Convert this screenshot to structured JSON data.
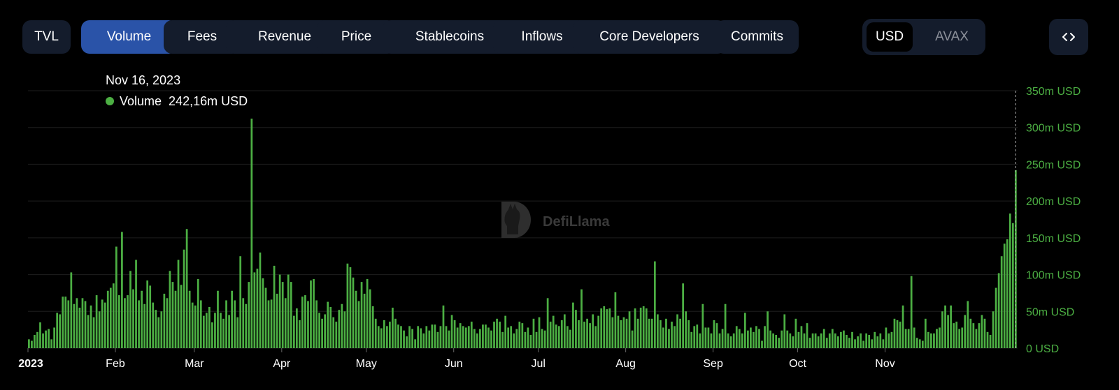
{
  "tabs": [
    {
      "label": "TVL",
      "active": false
    },
    {
      "label": "Volume",
      "active": true
    },
    {
      "label": "Fees",
      "active": false
    },
    {
      "label": "Revenue",
      "active": false
    },
    {
      "label": "Price",
      "active": false
    },
    {
      "label": "Stablecoins",
      "active": false
    },
    {
      "label": "Inflows",
      "active": false
    },
    {
      "label": "Core Developers",
      "active": false
    },
    {
      "label": "Commits",
      "active": false
    }
  ],
  "currency": {
    "selected": "USD",
    "other": "AVAX"
  },
  "embed_icon": "code-icon",
  "tooltip": {
    "date": "Nov 16, 2023",
    "series": "Volume",
    "value": "242,16m USD"
  },
  "watermark": "DefiLlama",
  "colors": {
    "bar": "#4caf43",
    "axis_label": "#4caf43",
    "tab_bg": "#141c2c",
    "tab_active": "#2a53a8"
  },
  "chart_data": {
    "type": "bar",
    "title": "",
    "xlabel": "",
    "ylabel": "",
    "ylim": [
      0,
      350
    ],
    "y_unit": "m USD",
    "y_ticks": [
      "0 USD",
      "50m USD",
      "100m USD",
      "150m USD",
      "200m USD",
      "250m USD",
      "300m USD",
      "350m USD"
    ],
    "x_tick_labels": [
      "2023",
      "Feb",
      "Mar",
      "Apr",
      "May",
      "Jun",
      "Jul",
      "Aug",
      "Sep",
      "Oct",
      "Nov"
    ],
    "x_tick_dates": [
      "2023-01-01",
      "2023-02-01",
      "2023-03-01",
      "2023-04-01",
      "2023-05-01",
      "2023-06-01",
      "2023-07-01",
      "2023-08-01",
      "2023-09-01",
      "2023-10-01",
      "2023-11-01"
    ],
    "x_start": "2023-01-01",
    "x_end": "2023-11-16",
    "grid": true,
    "highlighted": {
      "date": "2023-11-16",
      "value": 242.16
    },
    "series": [
      {
        "name": "Volume",
        "values": [
          12,
          10,
          18,
          22,
          35,
          20,
          24,
          26,
          12,
          28,
          48,
          46,
          70,
          70,
          65,
          103,
          60,
          68,
          55,
          68,
          64,
          45,
          58,
          42,
          72,
          50,
          66,
          62,
          78,
          82,
          88,
          138,
          72,
          158,
          68,
          72,
          105,
          80,
          120,
          65,
          78,
          60,
          92,
          85,
          62,
          52,
          42,
          50,
          74,
          68,
          105,
          90,
          78,
          120,
          86,
          134,
          162,
          78,
          62,
          58,
          94,
          65,
          44,
          48,
          56,
          35,
          48,
          78,
          48,
          40,
          65,
          45,
          78,
          65,
          42,
          125,
          68,
          60,
          90,
          312,
          103,
          108,
          130,
          95,
          82,
          65,
          66,
          112,
          74,
          100,
          90,
          68,
          100,
          90,
          44,
          54,
          38,
          70,
          72,
          64,
          92,
          94,
          65,
          48,
          40,
          46,
          63,
          56,
          42,
          36,
          52,
          60,
          50,
          115,
          110,
          96,
          78,
          64,
          90,
          74,
          94,
          80,
          57,
          40,
          30,
          27,
          38,
          30,
          36,
          55,
          40,
          32,
          30,
          24,
          16,
          30,
          26,
          12,
          30,
          27,
          20,
          30,
          24,
          32,
          32,
          22,
          30,
          58,
          30,
          24,
          45,
          38,
          28,
          34,
          30,
          28,
          30,
          36,
          26,
          20,
          26,
          32,
          32,
          28,
          24,
          36,
          40,
          36,
          22,
          44,
          28,
          30,
          20,
          26,
          36,
          34,
          22,
          28,
          18,
          40,
          22,
          42,
          26,
          24,
          68,
          36,
          44,
          32,
          30,
          38,
          46,
          30,
          25,
          62,
          52,
          38,
          80,
          36,
          40,
          34,
          46,
          30,
          44,
          54,
          57,
          53,
          54,
          42,
          76,
          44,
          38,
          42,
          40,
          50,
          24,
          54,
          40,
          55,
          57,
          54,
          40,
          40,
          118,
          46,
          38,
          28,
          40,
          26,
          36,
          30,
          46,
          40,
          88,
          50,
          38,
          22,
          30,
          32,
          20,
          60,
          28,
          28,
          20,
          38,
          34,
          20,
          26,
          60,
          20,
          16,
          20,
          30,
          26,
          20,
          48,
          24,
          28,
          22,
          30,
          26,
          10,
          30,
          50,
          24,
          20,
          18,
          14,
          24,
          46,
          24,
          20,
          16,
          40,
          22,
          30,
          20,
          34,
          14,
          20,
          20,
          16,
          20,
          26,
          14,
          20,
          26,
          20,
          16,
          22,
          24,
          18,
          14,
          22,
          12,
          16,
          20,
          10,
          20,
          18,
          12,
          22,
          16,
          20,
          12,
          28,
          20,
          22,
          40,
          38,
          36,
          58,
          26,
          26,
          98,
          28,
          14,
          12,
          10,
          40,
          22,
          20,
          20,
          26,
          28,
          50,
          58,
          45,
          58,
          34,
          36,
          26,
          28,
          45,
          64,
          40,
          34,
          26,
          34,
          45,
          40,
          22,
          18,
          50,
          82,
          102,
          125,
          142,
          148,
          183,
          170,
          242
        ]
      }
    ]
  }
}
